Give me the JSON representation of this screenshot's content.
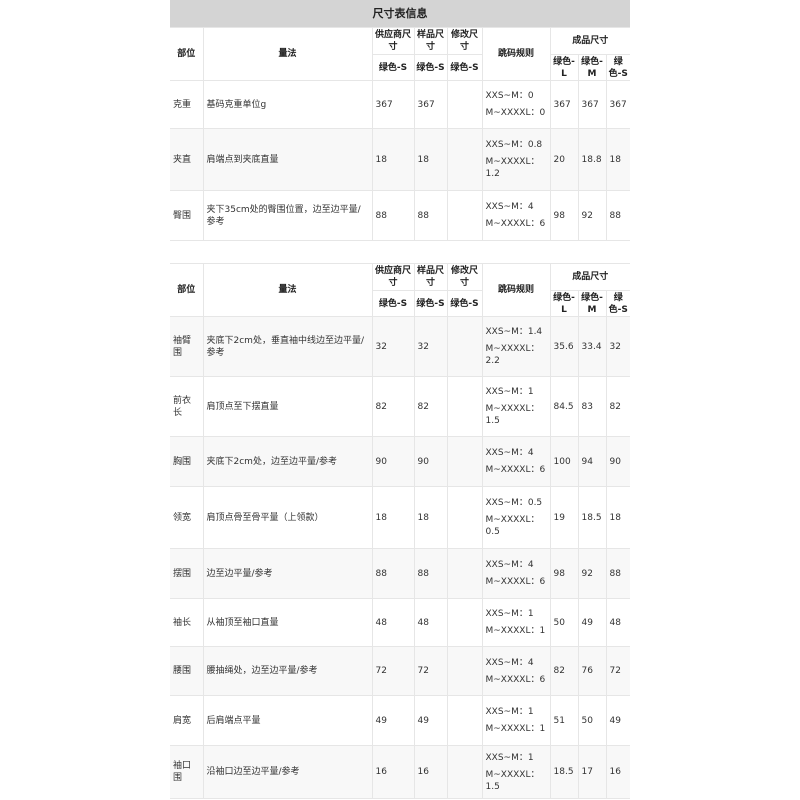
{
  "title": "尺寸表信息",
  "headers": {
    "part": "部位",
    "method": "量法",
    "supplier": "供应商尺寸",
    "sample": "样品尺寸",
    "modified": "修改尺寸",
    "rule": "跳码规则",
    "finished": "成品尺寸",
    "supplier_size": "绿色-S",
    "sample_size": "绿色-S",
    "modified_size": "绿色-S",
    "fin_l": "绿色-L",
    "fin_m": "绿色-M",
    "fin_s": "绿色-S"
  },
  "table1": [
    {
      "part": "克重",
      "method": "基码克重单位g",
      "supplier": "367",
      "sample": "367",
      "modified": "",
      "rule1": "XXS~M：0",
      "rule2": "M~XXXXL：0",
      "l": "367",
      "m": "367",
      "s": "367"
    },
    {
      "part": "夹直",
      "method": "肩端点到夹底直量",
      "supplier": "18",
      "sample": "18",
      "modified": "",
      "rule1": "XXS~M：0.8",
      "rule2": "M~XXXXL：1.2",
      "l": "20",
      "m": "18.8",
      "s": "18"
    },
    {
      "part": "臀围",
      "method": "夹下35cm处的臀围位置，边至边平量/参考",
      "supplier": "88",
      "sample": "88",
      "modified": "",
      "rule1": "XXS~M：4",
      "rule2": "M~XXXXL：6",
      "l": "98",
      "m": "92",
      "s": "88"
    }
  ],
  "table2": [
    {
      "part": "袖臂围",
      "method": "夹底下2cm处，垂直袖中线边至边平量/参考",
      "supplier": "32",
      "sample": "32",
      "modified": "",
      "rule1": "XXS~M：1.4",
      "rule2": "M~XXXXL：2.2",
      "l": "35.6",
      "m": "33.4",
      "s": "32"
    },
    {
      "part": "前衣长",
      "method": "肩顶点至下摆直量",
      "supplier": "82",
      "sample": "82",
      "modified": "",
      "rule1": "XXS~M：1",
      "rule2": "M~XXXXL：1.5",
      "l": "84.5",
      "m": "83",
      "s": "82"
    },
    {
      "part": "胸围",
      "method": "夹底下2cm处，边至边平量/参考",
      "supplier": "90",
      "sample": "90",
      "modified": "",
      "rule1": "XXS~M：4",
      "rule2": "M~XXXXL：6",
      "l": "100",
      "m": "94",
      "s": "90"
    },
    {
      "part": "领宽",
      "method": "肩顶点骨至骨平量（上领款）",
      "supplier": "18",
      "sample": "18",
      "modified": "",
      "rule1": "XXS~M：0.5",
      "rule2": "M~XXXXL：0.5",
      "l": "19",
      "m": "18.5",
      "s": "18"
    },
    {
      "part": "摆围",
      "method": "边至边平量/参考",
      "supplier": "88",
      "sample": "88",
      "modified": "",
      "rule1": "XXS~M：4",
      "rule2": "M~XXXXL：6",
      "l": "98",
      "m": "92",
      "s": "88"
    },
    {
      "part": "袖长",
      "method": "从袖顶至袖口直量",
      "supplier": "48",
      "sample": "48",
      "modified": "",
      "rule1": "XXS~M：1",
      "rule2": "M~XXXXL：1",
      "l": "50",
      "m": "49",
      "s": "48"
    },
    {
      "part": "腰围",
      "method": "腰抽绳处，边至边平量/参考",
      "supplier": "72",
      "sample": "72",
      "modified": "",
      "rule1": "XXS~M：4",
      "rule2": "M~XXXXL：6",
      "l": "82",
      "m": "76",
      "s": "72"
    },
    {
      "part": "肩宽",
      "method": "后肩端点平量",
      "supplier": "49",
      "sample": "49",
      "modified": "",
      "rule1": "XXS~M：1",
      "rule2": "M~XXXXL：1",
      "l": "51",
      "m": "50",
      "s": "49"
    },
    {
      "part": "袖口围",
      "method": "沿袖口边至边平量/参考",
      "supplier": "16",
      "sample": "16",
      "modified": "",
      "rule1": "XXS~M：1",
      "rule2": "M~XXXXL：1.5",
      "l": "18.5",
      "m": "17",
      "s": "16"
    }
  ]
}
